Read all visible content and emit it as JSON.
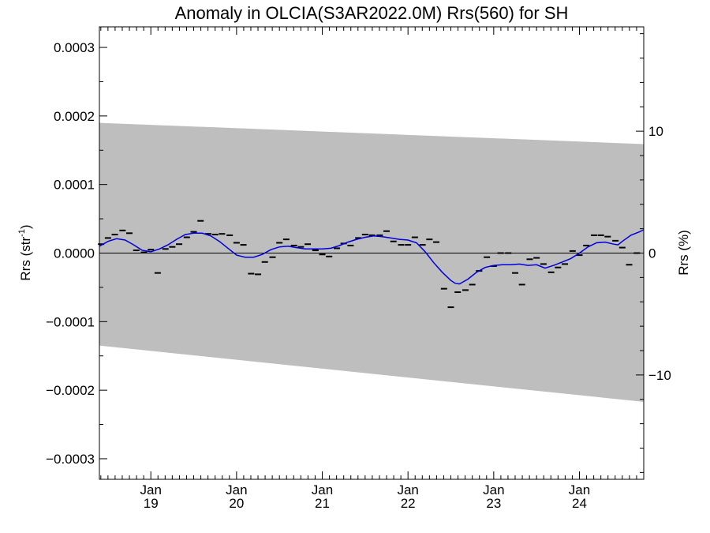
{
  "chart_data": {
    "type": "line",
    "title": "Anomaly in OLCIA(S3AR2022.0M) Rrs(560) for SH",
    "ylabel_left_base": "Rrs (str",
    "ylabel_left_sup": "-1",
    "ylabel_left_close": ")",
    "ylabel_right": "Rrs (%)",
    "xlabel": "",
    "x_unit": "decimal year",
    "xlim": [
      2018.4,
      2024.75
    ],
    "ylim": [
      -0.00033,
      0.00033
    ],
    "ylim_right_percent": [
      -18.56,
      18.56
    ],
    "x_ticks": [
      {
        "x": 2019.0,
        "month": "Jan",
        "year": "19"
      },
      {
        "x": 2020.0,
        "month": "Jan",
        "year": "20"
      },
      {
        "x": 2021.0,
        "month": "Jan",
        "year": "21"
      },
      {
        "x": 2022.0,
        "month": "Jan",
        "year": "22"
      },
      {
        "x": 2023.0,
        "month": "Jan",
        "year": "23"
      },
      {
        "x": 2024.0,
        "month": "Jan",
        "year": "24"
      }
    ],
    "y_ticks_left": [
      {
        "v": 0.0003,
        "label": "0.0003"
      },
      {
        "v": 0.0002,
        "label": "0.0002"
      },
      {
        "v": 0.0001,
        "label": "0.0001"
      },
      {
        "v": 0.0,
        "label": "0.0000"
      },
      {
        "v": -0.0001,
        "label": "−0.0001"
      },
      {
        "v": -0.0002,
        "label": "−0.0002"
      },
      {
        "v": -0.0003,
        "label": "−0.0003"
      }
    ],
    "y_ticks_right": [
      {
        "v": 10,
        "label": "10"
      },
      {
        "v": 0,
        "label": "0"
      },
      {
        "v": -10,
        "label": "−10"
      }
    ],
    "uncertainty_band": {
      "upper": [
        [
          2018.4,
          0.00019
        ],
        [
          2024.75,
          0.000159
        ]
      ],
      "lower": [
        [
          2018.4,
          -0.000135
        ],
        [
          2024.75,
          -0.000217
        ]
      ],
      "color": "#bebebe"
    },
    "monthly_anomaly": [
      [
        2018.42,
        1.3e-05
      ],
      [
        2018.5,
        2.2e-05
      ],
      [
        2018.58,
        2.7e-05
      ],
      [
        2018.67,
        3.3e-05
      ],
      [
        2018.75,
        2.9e-05
      ],
      [
        2018.83,
        4e-06
      ],
      [
        2018.92,
        1e-06
      ],
      [
        2019.0,
        5e-06
      ],
      [
        2019.08,
        -2.9e-05
      ],
      [
        2019.17,
        6e-06
      ],
      [
        2019.25,
        9e-06
      ],
      [
        2019.33,
        1.3e-05
      ],
      [
        2019.42,
        2.3e-05
      ],
      [
        2019.5,
        3.1e-05
      ],
      [
        2019.58,
        4.7e-05
      ],
      [
        2019.67,
        2.8e-05
      ],
      [
        2019.75,
        2.7e-05
      ],
      [
        2019.83,
        2.8e-05
      ],
      [
        2019.92,
        2.6e-05
      ],
      [
        2020.0,
        1.5e-05
      ],
      [
        2020.08,
        1.2e-05
      ],
      [
        2020.17,
        -3e-05
      ],
      [
        2020.25,
        -3.1e-05
      ],
      [
        2020.33,
        -1.3e-05
      ],
      [
        2020.42,
        -6e-06
      ],
      [
        2020.5,
        1.5e-05
      ],
      [
        2020.58,
        2e-05
      ],
      [
        2020.67,
        1.1e-05
      ],
      [
        2020.75,
        9e-06
      ],
      [
        2020.83,
        1.3e-05
      ],
      [
        2020.92,
        4e-06
      ],
      [
        2021.0,
        -2e-06
      ],
      [
        2021.08,
        -5e-06
      ],
      [
        2021.17,
        7e-06
      ],
      [
        2021.25,
        1.4e-05
      ],
      [
        2021.33,
        1.1e-05
      ],
      [
        2021.42,
        2.2e-05
      ],
      [
        2021.5,
        2.7e-05
      ],
      [
        2021.58,
        2.6e-05
      ],
      [
        2021.67,
        2.6e-05
      ],
      [
        2021.75,
        3.2e-05
      ],
      [
        2021.83,
        1.7e-05
      ],
      [
        2021.92,
        1.2e-05
      ],
      [
        2022.0,
        1.2e-05
      ],
      [
        2022.08,
        2.3e-05
      ],
      [
        2022.17,
        1.2e-05
      ],
      [
        2022.25,
        2e-05
      ],
      [
        2022.33,
        1.6e-05
      ],
      [
        2022.42,
        -5.2e-05
      ],
      [
        2022.5,
        -7.9e-05
      ],
      [
        2022.58,
        -5.7e-05
      ],
      [
        2022.67,
        -5.4e-05
      ],
      [
        2022.75,
        -4.6e-05
      ],
      [
        2022.83,
        -2.6e-05
      ],
      [
        2022.92,
        -6e-06
      ],
      [
        2023.0,
        -1.9e-05
      ],
      [
        2023.08,
        0.0
      ],
      [
        2023.17,
        0.0
      ],
      [
        2023.25,
        -2.9e-05
      ],
      [
        2023.33,
        -4.6e-05
      ],
      [
        2023.42,
        -9e-06
      ],
      [
        2023.5,
        -7e-06
      ],
      [
        2023.58,
        -1.6e-05
      ],
      [
        2023.67,
        -2.8e-05
      ],
      [
        2023.75,
        -2.1e-05
      ],
      [
        2023.83,
        -1.6e-05
      ],
      [
        2023.92,
        3e-06
      ],
      [
        2024.0,
        -3e-06
      ],
      [
        2024.08,
        1.1e-05
      ],
      [
        2024.17,
        2.6e-05
      ],
      [
        2024.25,
        2.6e-05
      ],
      [
        2024.33,
        2.4e-05
      ],
      [
        2024.42,
        1.8e-05
      ],
      [
        2024.5,
        8e-06
      ],
      [
        2024.58,
        -1.7e-05
      ],
      [
        2024.67,
        0.0
      ]
    ],
    "series": [
      {
        "color": "#0000dd",
        "values": [
          [
            2018.4,
            1e-05
          ],
          [
            2018.5,
            1.7e-05
          ],
          [
            2018.6,
            2.1e-05
          ],
          [
            2018.7,
            1.9e-05
          ],
          [
            2018.8,
            1.2e-05
          ],
          [
            2018.9,
            4e-06
          ],
          [
            2019.0,
            2e-06
          ],
          [
            2019.1,
            6e-06
          ],
          [
            2019.2,
            1.2e-05
          ],
          [
            2019.3,
            2e-05
          ],
          [
            2019.4,
            2.7e-05
          ],
          [
            2019.5,
            2.9e-05
          ],
          [
            2019.6,
            2.9e-05
          ],
          [
            2019.7,
            2.5e-05
          ],
          [
            2019.8,
            1.7e-05
          ],
          [
            2019.9,
            7e-06
          ],
          [
            2020.0,
            -3e-06
          ],
          [
            2020.1,
            -6e-06
          ],
          [
            2020.2,
            -6e-06
          ],
          [
            2020.3,
            -2e-06
          ],
          [
            2020.4,
            5e-06
          ],
          [
            2020.5,
            9e-06
          ],
          [
            2020.6,
            1e-05
          ],
          [
            2020.7,
            8e-06
          ],
          [
            2020.8,
            6e-06
          ],
          [
            2020.9,
            6e-06
          ],
          [
            2021.0,
            6e-06
          ],
          [
            2021.1,
            7e-06
          ],
          [
            2021.2,
            1.1e-05
          ],
          [
            2021.3,
            1.6e-05
          ],
          [
            2021.4,
            2e-05
          ],
          [
            2021.5,
            2.3e-05
          ],
          [
            2021.6,
            2.5e-05
          ],
          [
            2021.7,
            2.4e-05
          ],
          [
            2021.8,
            2.2e-05
          ],
          [
            2021.9,
            2e-05
          ],
          [
            2022.0,
            1.9e-05
          ],
          [
            2022.1,
            1.5e-05
          ],
          [
            2022.2,
            2e-06
          ],
          [
            2022.3,
            -1.4e-05
          ],
          [
            2022.4,
            -2.8e-05
          ],
          [
            2022.5,
            -4e-05
          ],
          [
            2022.55,
            -4.4e-05
          ],
          [
            2022.6,
            -4.5e-05
          ],
          [
            2022.7,
            -3.8e-05
          ],
          [
            2022.8,
            -2.8e-05
          ],
          [
            2022.9,
            -2.1e-05
          ],
          [
            2023.0,
            -1.8e-05
          ],
          [
            2023.1,
            -1.7e-05
          ],
          [
            2023.2,
            -1.7e-05
          ],
          [
            2023.3,
            -1.6e-05
          ],
          [
            2023.4,
            -1.8e-05
          ],
          [
            2023.5,
            -1.7e-05
          ],
          [
            2023.6,
            -2.2e-05
          ],
          [
            2023.7,
            -1.8e-05
          ],
          [
            2023.8,
            -1.3e-05
          ],
          [
            2023.9,
            -8e-06
          ],
          [
            2024.0,
            0.0
          ],
          [
            2024.1,
            9e-06
          ],
          [
            2024.2,
            1.5e-05
          ],
          [
            2024.3,
            1.6e-05
          ],
          [
            2024.4,
            1.3e-05
          ],
          [
            2024.45,
            1.2e-05
          ],
          [
            2024.5,
            1.7e-05
          ],
          [
            2024.6,
            2.6e-05
          ],
          [
            2024.7,
            3.1e-05
          ],
          [
            2024.75,
            3.4e-05
          ]
        ]
      }
    ]
  }
}
